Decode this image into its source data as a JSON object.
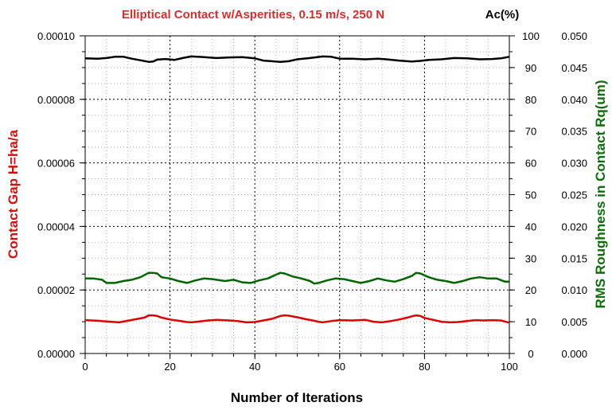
{
  "chart_data": {
    "type": "line",
    "title": "Elliptical Contact w/Asperities, 0.15 m/s, 250 N",
    "xlabel": "Number of Iterations",
    "ylabel_left": "Contact Gap H=ha/a",
    "ylabel_right_inner": "Ac(%)",
    "ylabel_right_outer": "RMS Roughness in Contact Rq(um)",
    "xlim": [
      0,
      100
    ],
    "x_ticks": [
      "0",
      "20",
      "40",
      "60",
      "80",
      "100"
    ],
    "ylim_left": [
      0,
      0.0001
    ],
    "left_ticks": [
      "0.00000",
      "0.00002",
      "0.00004",
      "0.00006",
      "0.00008",
      "0.00010"
    ],
    "ylim_right_inner": [
      0,
      100
    ],
    "right_inner_ticks": [
      "0",
      "10",
      "20",
      "30",
      "40",
      "50",
      "60",
      "70",
      "80",
      "90",
      "100"
    ],
    "ylim_right_outer": [
      0,
      0.05
    ],
    "right_outer_ticks": [
      "0.000",
      "0.005",
      "0.010",
      "0.015",
      "0.020",
      "0.025",
      "0.030",
      "0.035",
      "0.040",
      "0.045",
      "0.050"
    ],
    "grid": true,
    "colors": {
      "title": "#d03030",
      "left_axis": "#d01010",
      "right_outer_axis": "#0a6e0a",
      "gap_series": "#dd0000",
      "ac_series": "#000000",
      "rq_series": "#006400"
    },
    "series": [
      {
        "key": "contact_gap",
        "axis": "left",
        "color": "#dd0000",
        "x": [
          0,
          3,
          6,
          8,
          10,
          12,
          14,
          15,
          16,
          17,
          18,
          20,
          22,
          24,
          25,
          27,
          29,
          31,
          34,
          36,
          38,
          40,
          42,
          44,
          46,
          47,
          48,
          50,
          52,
          54,
          55,
          56,
          58,
          60,
          63,
          66,
          68,
          70,
          72,
          74,
          76,
          77,
          78,
          79,
          80,
          82,
          84,
          86,
          88,
          90,
          92,
          94,
          96,
          98,
          100
        ],
        "values": [
          1.05e-05,
          1.03e-05,
          1e-05,
          9.8e-06,
          1.03e-05,
          1.08e-05,
          1.13e-05,
          1.2e-05,
          1.2e-05,
          1.18e-05,
          1.13e-05,
          1.07e-05,
          1.03e-05,
          9.9e-06,
          9.8e-06,
          1.01e-05,
          1.04e-05,
          1.06e-05,
          1.04e-05,
          1.02e-05,
          9.8e-06,
          9.9e-06,
          1.04e-05,
          1.09e-05,
          1.18e-05,
          1.2e-05,
          1.19e-05,
          1.14e-05,
          1.08e-05,
          1.03e-05,
          1e-05,
          9.8e-06,
          1.02e-05,
          1.05e-05,
          1.04e-05,
          1.06e-05,
          1e-05,
          9.8e-06,
          1.02e-05,
          1.07e-05,
          1.13e-05,
          1.17e-05,
          1.2e-05,
          1.18e-05,
          1.12e-05,
          1.06e-05,
          1e-05,
          9.8e-06,
          9.9e-06,
          1.02e-05,
          1.05e-05,
          1.04e-05,
          1.05e-05,
          1.04e-05,
          9.7e-06
        ]
      },
      {
        "key": "ac_percent",
        "axis": "right_inner",
        "color": "#000000",
        "x": [
          0,
          3,
          5,
          7,
          9,
          11,
          13,
          15,
          16,
          17,
          19,
          21,
          23,
          25,
          28,
          31,
          34,
          37,
          40,
          42,
          44,
          46,
          48,
          50,
          53,
          56,
          58,
          60,
          63,
          66,
          69,
          71,
          74,
          77,
          79,
          81,
          84,
          87,
          90,
          93,
          96,
          98,
          100
        ],
        "values": [
          92.9,
          92.8,
          93.0,
          93.4,
          93.4,
          92.8,
          92.3,
          91.8,
          91.9,
          92.5,
          92.7,
          92.4,
          93.0,
          93.5,
          93.3,
          93.0,
          93.2,
          93.3,
          92.9,
          92.2,
          92.0,
          91.8,
          92.0,
          92.6,
          93.0,
          93.5,
          93.4,
          92.8,
          92.8,
          92.6,
          92.8,
          92.6,
          92.2,
          91.9,
          92.1,
          92.4,
          92.6,
          93.0,
          92.9,
          92.6,
          92.7,
          92.9,
          93.4
        ]
      },
      {
        "key": "rms_roughness",
        "axis": "right_outer",
        "color": "#006400",
        "x": [
          0,
          2,
          4,
          5,
          7,
          9,
          11,
          13,
          15,
          16,
          17,
          18,
          20,
          22,
          24,
          26,
          28,
          30,
          33,
          35,
          37,
          39,
          41,
          43,
          45,
          46,
          47,
          49,
          51,
          53,
          54,
          55,
          57,
          59,
          61,
          63,
          65,
          67,
          69,
          71,
          73,
          75,
          77,
          78,
          79,
          81,
          83,
          85,
          87,
          89,
          91,
          93,
          95,
          97,
          99,
          100
        ],
        "values": [
          0.0118,
          0.0118,
          0.0116,
          0.0111,
          0.0111,
          0.0114,
          0.0116,
          0.012,
          0.0127,
          0.0127,
          0.0126,
          0.012,
          0.0118,
          0.0114,
          0.0111,
          0.0115,
          0.0118,
          0.0117,
          0.0114,
          0.0116,
          0.0112,
          0.0111,
          0.0115,
          0.0118,
          0.0124,
          0.0127,
          0.0126,
          0.0121,
          0.0118,
          0.0114,
          0.011,
          0.0111,
          0.0115,
          0.0118,
          0.0117,
          0.0114,
          0.0111,
          0.0114,
          0.0118,
          0.0115,
          0.0113,
          0.0117,
          0.0122,
          0.0127,
          0.0126,
          0.012,
          0.0116,
          0.0114,
          0.0111,
          0.0114,
          0.0118,
          0.012,
          0.0118,
          0.0118,
          0.0113,
          0.0113
        ]
      }
    ]
  }
}
